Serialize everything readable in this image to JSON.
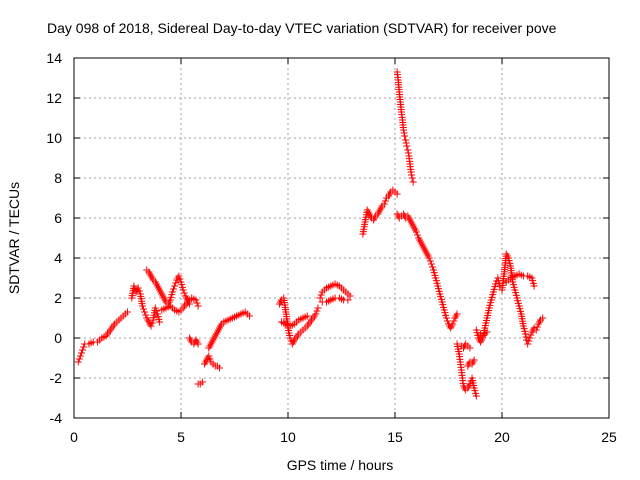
{
  "chart_data": {
    "type": "scatter",
    "title": "Day 098 of 2018, Sidereal Day-to-day VTEC variation (SDTVAR) for receiver pove",
    "xlabel": "GPS time / hours",
    "ylabel": "SDTVAR / TECUs",
    "xlim": [
      0,
      25
    ],
    "ylim": [
      -4,
      14
    ],
    "xticks": [
      0,
      5,
      10,
      15,
      20,
      25
    ],
    "yticks": [
      -4,
      -2,
      0,
      2,
      4,
      6,
      8,
      10,
      12,
      14
    ],
    "grid": true,
    "marker": "+",
    "color": "#ff0000",
    "series": [
      {
        "name": "SDTVAR",
        "segments": [
          [
            [
              0.2,
              -1.2
            ],
            [
              0.3,
              -0.9
            ],
            [
              0.4,
              -0.6
            ],
            [
              0.5,
              -0.3
            ],
            [
              0.7,
              -0.3
            ],
            [
              0.9,
              -0.2
            ],
            [
              1.1,
              -0.2
            ],
            [
              1.3,
              0.0
            ],
            [
              1.5,
              0.1
            ],
            [
              1.7,
              0.4
            ],
            [
              1.9,
              0.7
            ],
            [
              2.1,
              0.9
            ],
            [
              2.3,
              1.1
            ],
            [
              2.5,
              1.3
            ]
          ],
          [
            [
              2.7,
              2.0
            ],
            [
              2.8,
              2.6
            ],
            [
              2.9,
              2.3
            ],
            [
              3.0,
              2.5
            ],
            [
              3.1,
              2.2
            ],
            [
              3.2,
              1.6
            ],
            [
              3.3,
              1.3
            ],
            [
              3.4,
              1.0
            ],
            [
              3.5,
              0.8
            ],
            [
              3.6,
              0.6
            ],
            [
              3.7,
              0.9
            ],
            [
              3.8,
              1.5
            ],
            [
              3.9,
              1.2
            ],
            [
              4.0,
              0.8
            ]
          ],
          [
            [
              3.4,
              3.4
            ],
            [
              3.5,
              3.3
            ],
            [
              3.6,
              3.1
            ],
            [
              3.7,
              2.9
            ],
            [
              3.8,
              2.8
            ],
            [
              3.9,
              2.6
            ],
            [
              4.0,
              2.4
            ],
            [
              4.1,
              2.2
            ],
            [
              4.2,
              2.0
            ],
            [
              4.3,
              1.8
            ],
            [
              4.4,
              1.7
            ],
            [
              4.5,
              1.9
            ],
            [
              4.6,
              2.3
            ],
            [
              4.7,
              2.6
            ],
            [
              4.8,
              2.9
            ],
            [
              4.9,
              3.1
            ],
            [
              5.0,
              2.8
            ],
            [
              5.1,
              2.4
            ],
            [
              5.2,
              2.1
            ],
            [
              5.3,
              1.9
            ],
            [
              5.4,
              1.7
            ]
          ],
          [
            [
              4.1,
              1.4
            ],
            [
              4.3,
              1.5
            ],
            [
              4.5,
              1.6
            ],
            [
              4.7,
              1.4
            ],
            [
              4.9,
              1.3
            ],
            [
              5.1,
              1.5
            ],
            [
              5.3,
              1.8
            ],
            [
              5.5,
              2.0
            ],
            [
              5.7,
              1.9
            ],
            [
              5.8,
              1.6
            ]
          ],
          [
            [
              5.4,
              0.0
            ],
            [
              5.5,
              -0.2
            ],
            [
              5.6,
              -0.3
            ],
            [
              5.7,
              -0.1
            ],
            [
              5.8,
              -0.3
            ]
          ],
          [
            [
              5.8,
              -2.3
            ],
            [
              5.9,
              -2.3
            ],
            [
              6.0,
              -2.2
            ]
          ],
          [
            [
              6.1,
              -1.3
            ],
            [
              6.2,
              -1.1
            ],
            [
              6.3,
              -0.9
            ],
            [
              6.4,
              -1.2
            ],
            [
              6.5,
              -1.3
            ],
            [
              6.6,
              -1.4
            ],
            [
              6.7,
              -1.4
            ],
            [
              6.8,
              -1.5
            ]
          ],
          [
            [
              6.3,
              -0.5
            ],
            [
              6.4,
              -0.3
            ],
            [
              6.5,
              -0.1
            ],
            [
              6.6,
              0.1
            ],
            [
              6.7,
              0.3
            ],
            [
              6.8,
              0.5
            ],
            [
              6.9,
              0.7
            ],
            [
              7.0,
              0.8
            ],
            [
              7.2,
              0.9
            ],
            [
              7.4,
              1.0
            ],
            [
              7.6,
              1.1
            ],
            [
              7.8,
              1.2
            ],
            [
              8.0,
              1.3
            ],
            [
              8.2,
              1.1
            ]
          ],
          [
            [
              9.6,
              1.7
            ],
            [
              9.7,
              1.9
            ],
            [
              9.8,
              2.0
            ],
            [
              9.9,
              1.3
            ],
            [
              10.0,
              0.5
            ],
            [
              10.1,
              0.0
            ],
            [
              10.2,
              -0.3
            ],
            [
              10.3,
              -0.1
            ],
            [
              10.5,
              0.2
            ],
            [
              10.7,
              0.4
            ],
            [
              10.9,
              0.6
            ],
            [
              11.1,
              0.9
            ],
            [
              11.3,
              1.2
            ],
            [
              11.4,
              1.5
            ]
          ],
          [
            [
              9.7,
              0.8
            ],
            [
              9.9,
              0.7
            ],
            [
              10.1,
              0.6
            ],
            [
              10.3,
              0.7
            ],
            [
              10.5,
              0.9
            ],
            [
              10.7,
              1.0
            ],
            [
              10.9,
              1.1
            ]
          ],
          [
            [
              11.5,
              2.0
            ],
            [
              11.6,
              2.3
            ],
            [
              11.8,
              2.5
            ],
            [
              12.0,
              2.6
            ],
            [
              12.2,
              2.7
            ],
            [
              12.4,
              2.6
            ],
            [
              12.6,
              2.4
            ],
            [
              12.8,
              2.2
            ],
            [
              12.9,
              2.1
            ]
          ],
          [
            [
              11.6,
              1.8
            ],
            [
              11.8,
              1.8
            ],
            [
              12.0,
              1.9
            ],
            [
              12.2,
              2.0
            ],
            [
              12.4,
              2.0
            ],
            [
              12.6,
              1.9
            ],
            [
              12.8,
              1.9
            ]
          ],
          [
            [
              13.5,
              5.2
            ],
            [
              13.6,
              5.8
            ],
            [
              13.7,
              6.4
            ],
            [
              13.8,
              6.2
            ],
            [
              13.9,
              6.0
            ],
            [
              14.0,
              5.9
            ],
            [
              14.1,
              6.1
            ],
            [
              14.2,
              6.2
            ],
            [
              14.3,
              6.4
            ],
            [
              14.4,
              6.6
            ],
            [
              14.5,
              6.7
            ],
            [
              14.6,
              7.0
            ],
            [
              14.7,
              7.1
            ],
            [
              14.8,
              7.3
            ],
            [
              14.9,
              7.4
            ],
            [
              15.0,
              7.3
            ],
            [
              15.1,
              7.2
            ]
          ],
          [
            [
              15.1,
              13.3
            ],
            [
              15.15,
              12.9
            ],
            [
              15.2,
              12.3
            ],
            [
              15.25,
              11.8
            ],
            [
              15.3,
              11.3
            ],
            [
              15.35,
              10.9
            ],
            [
              15.4,
              10.4
            ],
            [
              15.45,
              10.1
            ],
            [
              15.5,
              9.9
            ],
            [
              15.55,
              9.6
            ],
            [
              15.6,
              9.4
            ],
            [
              15.65,
              9.1
            ],
            [
              15.7,
              8.7
            ],
            [
              15.75,
              8.3
            ],
            [
              15.8,
              8.0
            ],
            [
              15.85,
              7.8
            ]
          ],
          [
            [
              15.1,
              6.2
            ],
            [
              15.2,
              6.0
            ],
            [
              15.3,
              6.1
            ],
            [
              15.4,
              6.2
            ],
            [
              15.5,
              6.0
            ],
            [
              15.6,
              6.1
            ],
            [
              15.7,
              5.9
            ],
            [
              15.8,
              5.7
            ],
            [
              15.9,
              5.5
            ],
            [
              16.0,
              5.3
            ],
            [
              16.1,
              5.0
            ],
            [
              16.2,
              4.8
            ],
            [
              16.3,
              4.6
            ],
            [
              16.4,
              4.4
            ],
            [
              16.5,
              4.2
            ],
            [
              16.6,
              4.0
            ],
            [
              16.7,
              3.7
            ],
            [
              16.8,
              3.4
            ],
            [
              16.9,
              3.0
            ],
            [
              17.0,
              2.6
            ],
            [
              17.1,
              2.2
            ],
            [
              17.2,
              1.8
            ],
            [
              17.3,
              1.4
            ],
            [
              17.4,
              1.0
            ],
            [
              17.5,
              0.7
            ],
            [
              17.6,
              0.5
            ],
            [
              17.7,
              0.7
            ],
            [
              17.8,
              1.0
            ],
            [
              17.9,
              1.2
            ]
          ],
          [
            [
              17.9,
              -0.3
            ],
            [
              18.0,
              -0.8
            ],
            [
              18.05,
              -1.2
            ],
            [
              18.1,
              -1.6
            ],
            [
              18.15,
              -2.0
            ],
            [
              18.2,
              -2.4
            ],
            [
              18.3,
              -2.6
            ],
            [
              18.4,
              -2.5
            ],
            [
              18.5,
              -2.3
            ],
            [
              18.6,
              -2.0
            ],
            [
              18.7,
              -2.5
            ],
            [
              18.8,
              -2.9
            ]
          ],
          [
            [
              18.1,
              -0.4
            ],
            [
              18.2,
              -0.5
            ],
            [
              18.3,
              -0.3
            ],
            [
              18.4,
              -0.4
            ],
            [
              18.5,
              -0.5
            ]
          ],
          [
            [
              18.4,
              -1.4
            ],
            [
              18.5,
              -1.2
            ],
            [
              18.6,
              -1.3
            ],
            [
              18.7,
              -1.1
            ]
          ],
          [
            [
              18.8,
              0.4
            ],
            [
              18.9,
              0.0
            ],
            [
              19.0,
              -0.2
            ],
            [
              19.1,
              0.0
            ],
            [
              19.2,
              0.5
            ],
            [
              19.3,
              1.0
            ],
            [
              19.4,
              1.5
            ],
            [
              19.5,
              1.9
            ],
            [
              19.6,
              2.3
            ],
            [
              19.7,
              2.7
            ],
            [
              19.8,
              3.0
            ],
            [
              19.9,
              2.6
            ]
          ],
          [
            [
              19.0,
              0.2
            ],
            [
              19.1,
              0.1
            ],
            [
              19.2,
              0.2
            ],
            [
              19.3,
              0.3
            ]
          ],
          [
            [
              20.0,
              2.4
            ],
            [
              20.1,
              3.2
            ],
            [
              20.2,
              4.2
            ],
            [
              20.3,
              4.0
            ],
            [
              20.4,
              3.6
            ],
            [
              20.5,
              2.8
            ],
            [
              20.6,
              2.4
            ],
            [
              20.7,
              2.0
            ],
            [
              20.8,
              1.6
            ],
            [
              20.9,
              1.2
            ],
            [
              21.0,
              0.6
            ],
            [
              21.1,
              0.2
            ],
            [
              21.15,
              -0.1
            ],
            [
              21.2,
              -0.3
            ],
            [
              21.3,
              0.0
            ],
            [
              21.4,
              0.3
            ],
            [
              21.5,
              0.5
            ],
            [
              21.6,
              0.4
            ],
            [
              21.7,
              0.7
            ],
            [
              21.8,
              0.9
            ],
            [
              21.9,
              1.0
            ]
          ],
          [
            [
              20.2,
              2.8
            ],
            [
              20.4,
              3.0
            ],
            [
              20.6,
              3.1
            ],
            [
              20.8,
              3.2
            ],
            [
              21.0,
              3.1
            ],
            [
              21.2,
              3.1
            ],
            [
              21.4,
              3.0
            ],
            [
              21.5,
              2.6
            ]
          ]
        ]
      }
    ]
  }
}
